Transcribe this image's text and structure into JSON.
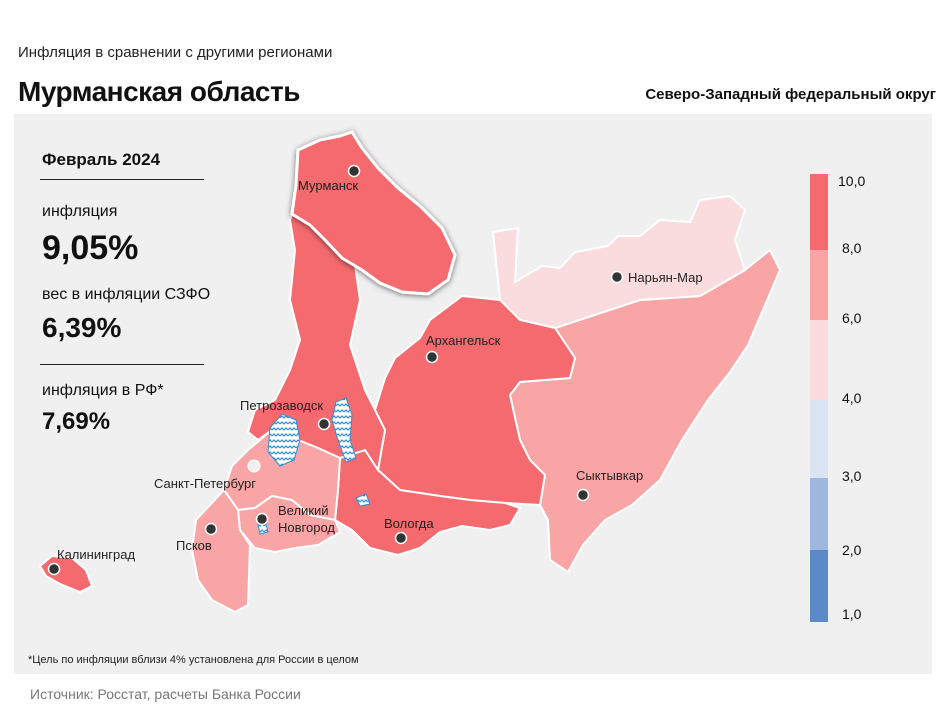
{
  "header": {
    "subtitle": "Инфляция  в сравнении  с другими  регионами",
    "title": "Мурманская область",
    "district": "Северо-Западный федеральный округ"
  },
  "stats": {
    "period": "Февраль 2024",
    "inflation_label": "инфляция",
    "inflation_value": "9,05%",
    "weight_label": "вес в инфляции  СЗФО",
    "weight_value": "6,39%",
    "rf_label": "инфляция  в РФ*",
    "rf_value": "7,69%"
  },
  "cities": {
    "murmansk": "Мурманск",
    "naryan_mar": "Нарьян-Мар",
    "arkhangelsk": "Архангельск",
    "petrozavodsk": "Петрозаводск",
    "spb": "Санкт-Петербург",
    "syktyvkar": "Сыктывкар",
    "novgorod_1": "Великий",
    "novgorod_2": "Новгород",
    "vologda": "Вологда",
    "pskov": "Псков",
    "kaliningrad": "Калининград"
  },
  "legend": {
    "ticks": [
      "10,0",
      "8,0",
      "6,0",
      "4,0",
      "3,0",
      "2,0",
      "1,0"
    ],
    "colors": [
      "#f46a6e",
      "#f9a5a6",
      "#fadcdf",
      "#dbe4f3",
      "#9db8dc",
      "#5b8ac6"
    ]
  },
  "colors": {
    "red": "#f46a6e",
    "pink": "#f9a5a6",
    "light_pink": "#fadcdf",
    "water": "#5aaee8"
  },
  "footnote": "*Цель по инфляции вблизи 4% установлена для России в целом",
  "source": "Источник: Росстат, расчеты Банка России"
}
